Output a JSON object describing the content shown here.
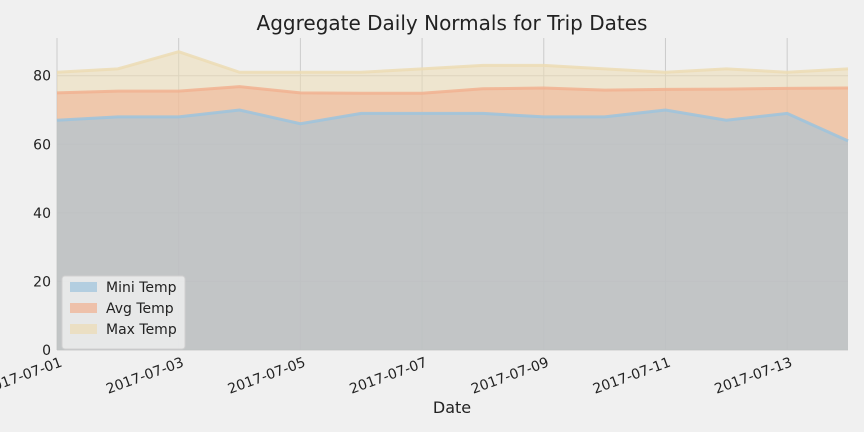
{
  "chart_data": {
    "type": "area",
    "title": "Aggregate Daily Normals for Trip Dates",
    "xlabel": "Date",
    "ylabel": "",
    "x": [
      "2017-07-01",
      "2017-07-02",
      "2017-07-03",
      "2017-07-04",
      "2017-07-05",
      "2017-07-06",
      "2017-07-07",
      "2017-07-08",
      "2017-07-09",
      "2017-07-10",
      "2017-07-11",
      "2017-07-12",
      "2017-07-13",
      "2017-07-14"
    ],
    "xticks": [
      "2017-07-01",
      "2017-07-03",
      "2017-07-05",
      "2017-07-07",
      "2017-07-09",
      "2017-07-11",
      "2017-07-13"
    ],
    "yticks": [
      0,
      20,
      40,
      60,
      80
    ],
    "ylim": [
      0,
      91
    ],
    "stacked": false,
    "grid": true,
    "legend_position": "lower-left",
    "series": [
      {
        "name": "Mini Temp",
        "color": "#9cc3dd",
        "values": [
          67,
          68,
          68,
          70,
          66,
          69,
          69,
          69,
          68,
          68,
          70,
          67,
          69,
          61
        ]
      },
      {
        "name": "Avg Temp",
        "color": "#f1b190",
        "values": [
          75,
          75.5,
          75.5,
          76.8,
          75,
          74.9,
          74.9,
          76.2,
          76.4,
          75.8,
          76,
          76.1,
          76.3,
          76.4
        ]
      },
      {
        "name": "Max Temp",
        "color": "#ecdcb4",
        "values": [
          81,
          82,
          87,
          81,
          81,
          81,
          82,
          83,
          83,
          82,
          81,
          82,
          81,
          82
        ]
      }
    ]
  }
}
